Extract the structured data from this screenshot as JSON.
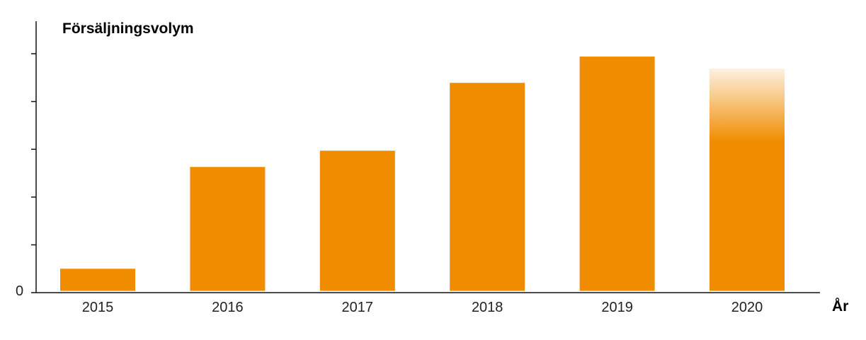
{
  "chart_data": {
    "type": "bar",
    "title": "Försäljningsvolym",
    "xlabel": "År",
    "ylabel": "",
    "categories": [
      "2015",
      "2016",
      "2017",
      "2018",
      "2019",
      "2020"
    ],
    "values": [
      0.5,
      2.63,
      2.97,
      4.39,
      4.94,
      4.69
    ],
    "y_tick_labels": [
      "0"
    ],
    "y_ticks_count": 5,
    "ylim": [
      0,
      5.68
    ],
    "grid": false,
    "bar_color": "#f08c00",
    "faded_top_category": "2020"
  }
}
